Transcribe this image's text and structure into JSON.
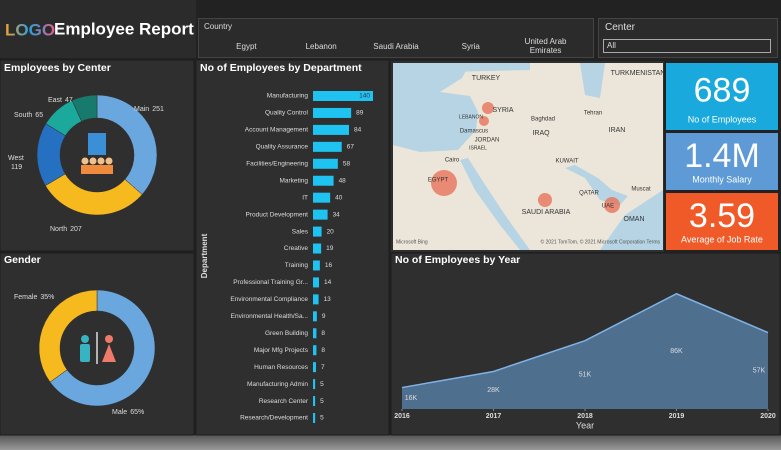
{
  "header": {
    "logo": "LOGO",
    "title": "Employee Report"
  },
  "country_slicer": {
    "label": "Country",
    "items": [
      "Egypt",
      "Lebanon",
      "Saudi Arabia",
      "Syria",
      "United Arab Emirates"
    ]
  },
  "center_slicer": {
    "label": "Center",
    "selected": "All"
  },
  "cards": [
    {
      "value": "689",
      "label": "No of Employees",
      "color": "#19a9dc"
    },
    {
      "value": "1.4M",
      "label": "Monthly Salary",
      "color": "#5d9ad6"
    },
    {
      "value": "3.59",
      "label": "Average of Job Rate",
      "color": "#f05a28"
    }
  ],
  "map": {
    "labels": [
      "TURKEY",
      "TURKMENISTAN",
      "SYRIA",
      "LEBANON",
      "Damascus",
      "JORDAN",
      "ISRAEL",
      "Baghdad",
      "IRAQ",
      "Tehran",
      "IRAN",
      "KUWAIT",
      "Cairo",
      "EGYPT",
      "QATAR",
      "SAUDI ARABIA",
      "UAE",
      "Muscat",
      "OMAN"
    ],
    "brand": "Microsoft Bing",
    "attribution": "© 2021 TomTom, © 2021 Microsoft Corporation Terms"
  },
  "chart_data": [
    {
      "type": "donut",
      "title": "Employees by Center",
      "categories": [
        "Main",
        "North",
        "West",
        "South",
        "East"
      ],
      "values": [
        251,
        207,
        119,
        65,
        47
      ],
      "colors": [
        "#6aa7de",
        "#f6b91e",
        "#2670c2",
        "#1aa99a",
        "#177a6c"
      ]
    },
    {
      "type": "donut",
      "title": "Gender",
      "categories": [
        "Male",
        "Female"
      ],
      "values": [
        65,
        35
      ],
      "value_labels": [
        "65%",
        "35%"
      ],
      "colors": [
        "#6aa7de",
        "#f6b91e"
      ]
    },
    {
      "type": "bar",
      "title": "No of Employees by Department",
      "y_label": "Department",
      "color": "#1fc3f2",
      "xlim": [
        0,
        140
      ],
      "categories": [
        "Manufacturing",
        "Quality Control",
        "Account Management",
        "Quality Assurance",
        "Facilities/Engineering",
        "Marketing",
        "IT",
        "Product Development",
        "Sales",
        "Creative",
        "Training",
        "Professional Training Gr...",
        "Environmental Compliance",
        "Environmental Health/Sa...",
        "Green Building",
        "Major Mfg Projects",
        "Human Resources",
        "Manufacturing Admin",
        "Research Center",
        "Research/Development"
      ],
      "values": [
        140,
        89,
        84,
        67,
        58,
        48,
        40,
        34,
        20,
        19,
        16,
        14,
        13,
        9,
        8,
        8,
        7,
        5,
        5,
        5
      ]
    },
    {
      "type": "area",
      "title": "No of Employees by Year",
      "x_label": "Year",
      "x": [
        2016,
        2017,
        2018,
        2019,
        2020
      ],
      "values": [
        16000,
        28000,
        51000,
        86000,
        57000
      ],
      "value_labels": [
        "16K",
        "28K",
        "51K",
        "86K",
        "57K"
      ],
      "xlim": [
        2016,
        2020
      ],
      "xticks": [
        2016,
        2017,
        2018,
        2019,
        2020
      ],
      "ylim": [
        0,
        100000
      ],
      "color": "#4f6f8f",
      "line_color": "#7fb3e6"
    }
  ]
}
